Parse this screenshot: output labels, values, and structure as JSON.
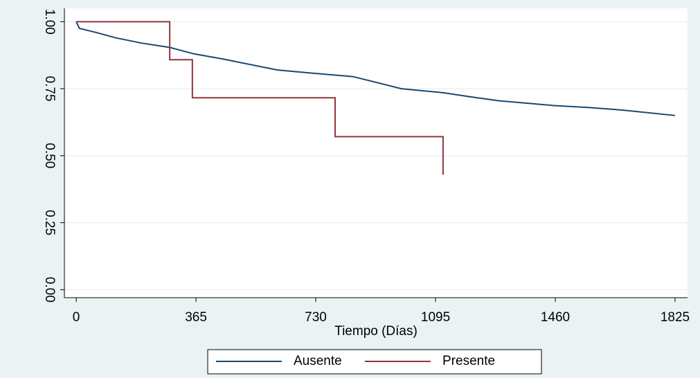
{
  "chart_data": {
    "type": "line",
    "x_label": "Tiempo (Días)",
    "xlim": [
      -36,
      1863
    ],
    "xticks": [
      0,
      365,
      730,
      1095,
      1460,
      1825
    ],
    "ylim": [
      -0.03,
      1.05
    ],
    "yticks": [
      {
        "value": 0,
        "label": "0.00"
      },
      {
        "value": 0.25,
        "label": "0.25"
      },
      {
        "value": 0.5,
        "label": "0.50"
      },
      {
        "value": 0.75,
        "label": "0.75"
      },
      {
        "value": 1,
        "label": "1.00"
      }
    ],
    "grid": true,
    "legend": "bottom",
    "series": [
      {
        "name": "Ausente",
        "color": "#1a476f",
        "x": [
          0,
          10,
          60,
          120,
          200,
          285,
          359,
          450,
          612,
          700,
          844,
          991,
          1118,
          1200,
          1287,
          1456,
          1560,
          1667,
          1825
        ],
        "values": [
          1,
          0.975,
          0.96,
          0.94,
          0.92,
          0.904,
          0.88,
          0.86,
          0.82,
          0.81,
          0.795,
          0.75,
          0.735,
          0.72,
          0.705,
          0.687,
          0.68,
          0.67,
          0.65
        ]
      },
      {
        "name": "Presente",
        "color": "#90353b",
        "x": [
          0,
          285,
          285,
          354,
          354,
          789,
          789,
          1118,
          1118
        ],
        "values": [
          1,
          1,
          0.858,
          0.858,
          0.716,
          0.716,
          0.571,
          0.571,
          0.429
        ]
      }
    ]
  }
}
